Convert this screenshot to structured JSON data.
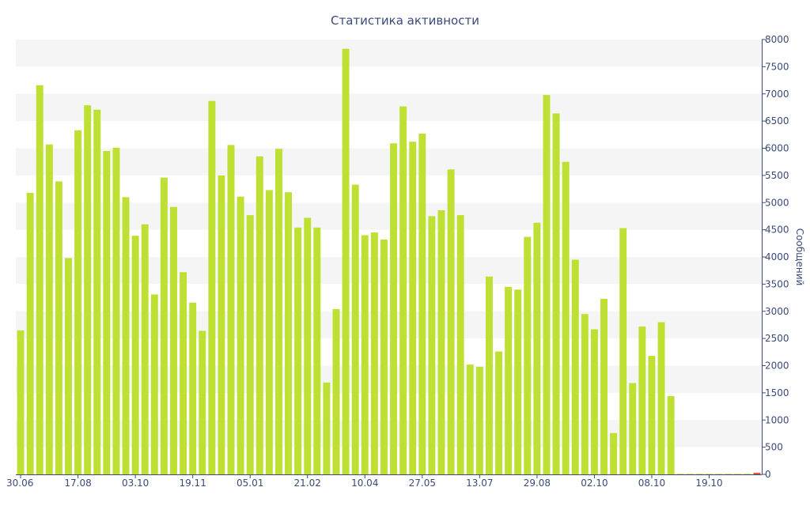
{
  "chart_data": {
    "type": "bar",
    "title": "Статистика активности",
    "ylabel": "Сообщений",
    "xlabel": "",
    "ylim": [
      0,
      8000
    ],
    "y_ticks": [
      0,
      500,
      1000,
      1500,
      2000,
      2500,
      3000,
      3500,
      4000,
      4500,
      5000,
      5500,
      6000,
      6500,
      7000,
      7500,
      8000
    ],
    "x_tick_labels": [
      "30.06",
      "17.08",
      "03.10",
      "19.11",
      "05.01",
      "21.02",
      "10.04",
      "27.05",
      "13.07",
      "29.08",
      "02.10",
      "08.10",
      "19.10"
    ],
    "x_tick_indices": [
      0,
      6,
      12,
      18,
      24,
      30,
      36,
      42,
      48,
      54,
      60,
      66,
      72
    ],
    "values": [
      2650,
      5180,
      7160,
      6070,
      5390,
      3980,
      6330,
      6790,
      6710,
      5950,
      6010,
      5100,
      4390,
      4600,
      3310,
      5460,
      4920,
      3720,
      3160,
      2640,
      6870,
      5500,
      6060,
      5110,
      4770,
      5850,
      5230,
      5990,
      5190,
      4540,
      4720,
      4540,
      1690,
      3040,
      7830,
      5330,
      4400,
      4450,
      4320,
      6090,
      6770,
      6120,
      6270,
      4750,
      4860,
      5610,
      4770,
      2020,
      1980,
      3640,
      2260,
      3450,
      3400,
      4370,
      4630,
      6980,
      6640,
      5750,
      3950,
      2950,
      2670,
      3230,
      760,
      4530,
      1680,
      2720,
      2180,
      2800,
      1440,
      10,
      10,
      10,
      10,
      10,
      10,
      10,
      10,
      30
    ],
    "grid": true,
    "legend": "none",
    "colors": {
      "bar": "#bde033",
      "last_bar": "#e05a3a",
      "band": "#f5f5f5",
      "axis": "#3a4a7a",
      "text": "#3a4a7a"
    }
  }
}
